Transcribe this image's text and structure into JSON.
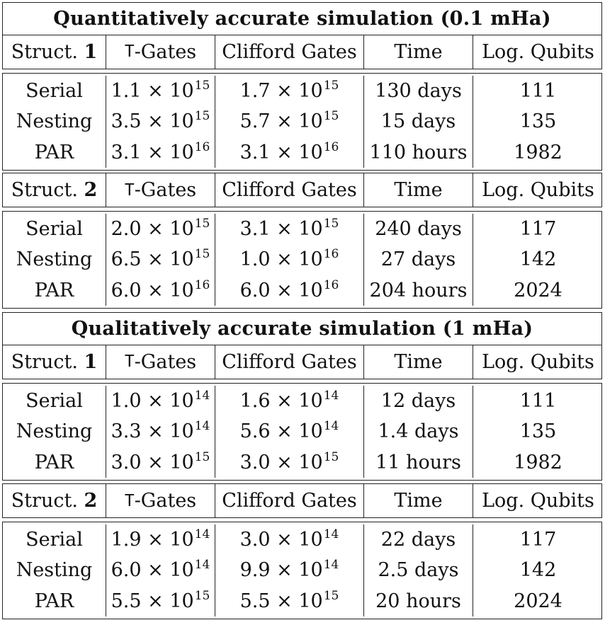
{
  "sections": [
    {
      "title": "Quantitatively accurate simulation (0.1 mHa)",
      "groups": [
        {
          "struct_label": "Struct.",
          "struct_num": "1",
          "headers": [
            "T-Gates",
            "Clifford Gates",
            "Time",
            "Log. Qubits"
          ],
          "rows": [
            {
              "method": "Serial",
              "t_mant": "1.1",
              "t_exp": "15",
              "c_mant": "1.7",
              "c_exp": "15",
              "time": "130 days",
              "qubits": "111"
            },
            {
              "method": "Nesting",
              "t_mant": "3.5",
              "t_exp": "15",
              "c_mant": "5.7",
              "c_exp": "15",
              "time": "15 days",
              "qubits": "135"
            },
            {
              "method": "PAR",
              "t_mant": "3.1",
              "t_exp": "16",
              "c_mant": "3.1",
              "c_exp": "16",
              "time": "110 hours",
              "qubits": "1982"
            }
          ]
        },
        {
          "struct_label": "Struct.",
          "struct_num": "2",
          "headers": [
            "T-Gates",
            "Clifford Gates",
            "Time",
            "Log. Qubits"
          ],
          "rows": [
            {
              "method": "Serial",
              "t_mant": "2.0",
              "t_exp": "15",
              "c_mant": "3.1",
              "c_exp": "15",
              "time": "240 days",
              "qubits": "117"
            },
            {
              "method": "Nesting",
              "t_mant": "6.5",
              "t_exp": "15",
              "c_mant": "1.0",
              "c_exp": "16",
              "time": "27 days",
              "qubits": "142"
            },
            {
              "method": "PAR",
              "t_mant": "6.0",
              "t_exp": "16",
              "c_mant": "6.0",
              "c_exp": "16",
              "time": "204 hours",
              "qubits": "2024"
            }
          ]
        }
      ]
    },
    {
      "title": "Qualitatively accurate simulation (1 mHa)",
      "groups": [
        {
          "struct_label": "Struct.",
          "struct_num": "1",
          "headers": [
            "T-Gates",
            "Clifford Gates",
            "Time",
            "Log. Qubits"
          ],
          "rows": [
            {
              "method": "Serial",
              "t_mant": "1.0",
              "t_exp": "14",
              "c_mant": "1.6",
              "c_exp": "14",
              "time": "12 days",
              "qubits": "111"
            },
            {
              "method": "Nesting",
              "t_mant": "3.3",
              "t_exp": "14",
              "c_mant": "5.6",
              "c_exp": "14",
              "time": "1.4 days",
              "qubits": "135"
            },
            {
              "method": "PAR",
              "t_mant": "3.0",
              "t_exp": "15",
              "c_mant": "3.0",
              "c_exp": "15",
              "time": "11 hours",
              "qubits": "1982"
            }
          ]
        },
        {
          "struct_label": "Struct.",
          "struct_num": "2",
          "headers": [
            "T-Gates",
            "Clifford Gates",
            "Time",
            "Log. Qubits"
          ],
          "rows": [
            {
              "method": "Serial",
              "t_mant": "1.9",
              "t_exp": "14",
              "c_mant": "3.0",
              "c_exp": "14",
              "time": "22 days",
              "qubits": "117"
            },
            {
              "method": "Nesting",
              "t_mant": "6.0",
              "t_exp": "14",
              "c_mant": "9.9",
              "c_exp": "14",
              "time": "2.5 days",
              "qubits": "142"
            },
            {
              "method": "PAR",
              "t_mant": "5.5",
              "t_exp": "15",
              "c_mant": "5.5",
              "c_exp": "15",
              "time": "20 hours",
              "qubits": "2024"
            }
          ]
        }
      ]
    }
  ]
}
